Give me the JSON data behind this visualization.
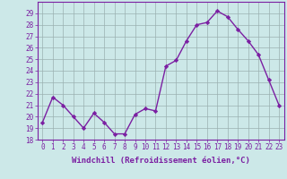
{
  "x": [
    0,
    1,
    2,
    3,
    4,
    5,
    6,
    7,
    8,
    9,
    10,
    11,
    12,
    13,
    14,
    15,
    16,
    17,
    18,
    19,
    20,
    21,
    22,
    23
  ],
  "y": [
    19.5,
    21.7,
    21.0,
    20.0,
    19.0,
    20.3,
    19.5,
    18.5,
    18.5,
    20.2,
    20.7,
    20.5,
    24.4,
    24.9,
    26.6,
    28.0,
    28.2,
    29.2,
    28.7,
    27.6,
    26.6,
    25.4,
    23.2,
    21.0
  ],
  "line_color": "#7b1fa2",
  "marker": "D",
  "marker_size": 2.2,
  "linewidth": 1.0,
  "xlabel": "Windchill (Refroidissement éolien,°C)",
  "xlabel_fontsize": 6.5,
  "ylim": [
    18,
    30
  ],
  "xlim": [
    -0.5,
    23.5
  ],
  "yticks": [
    18,
    19,
    20,
    21,
    22,
    23,
    24,
    25,
    26,
    27,
    28,
    29
  ],
  "xticks": [
    0,
    1,
    2,
    3,
    4,
    5,
    6,
    7,
    8,
    9,
    10,
    11,
    12,
    13,
    14,
    15,
    16,
    17,
    18,
    19,
    20,
    21,
    22,
    23
  ],
  "tick_fontsize": 5.5,
  "bg_color": "#cce8e8",
  "grid_color": "#9ab0b0",
  "spine_color": "#7b1fa2"
}
